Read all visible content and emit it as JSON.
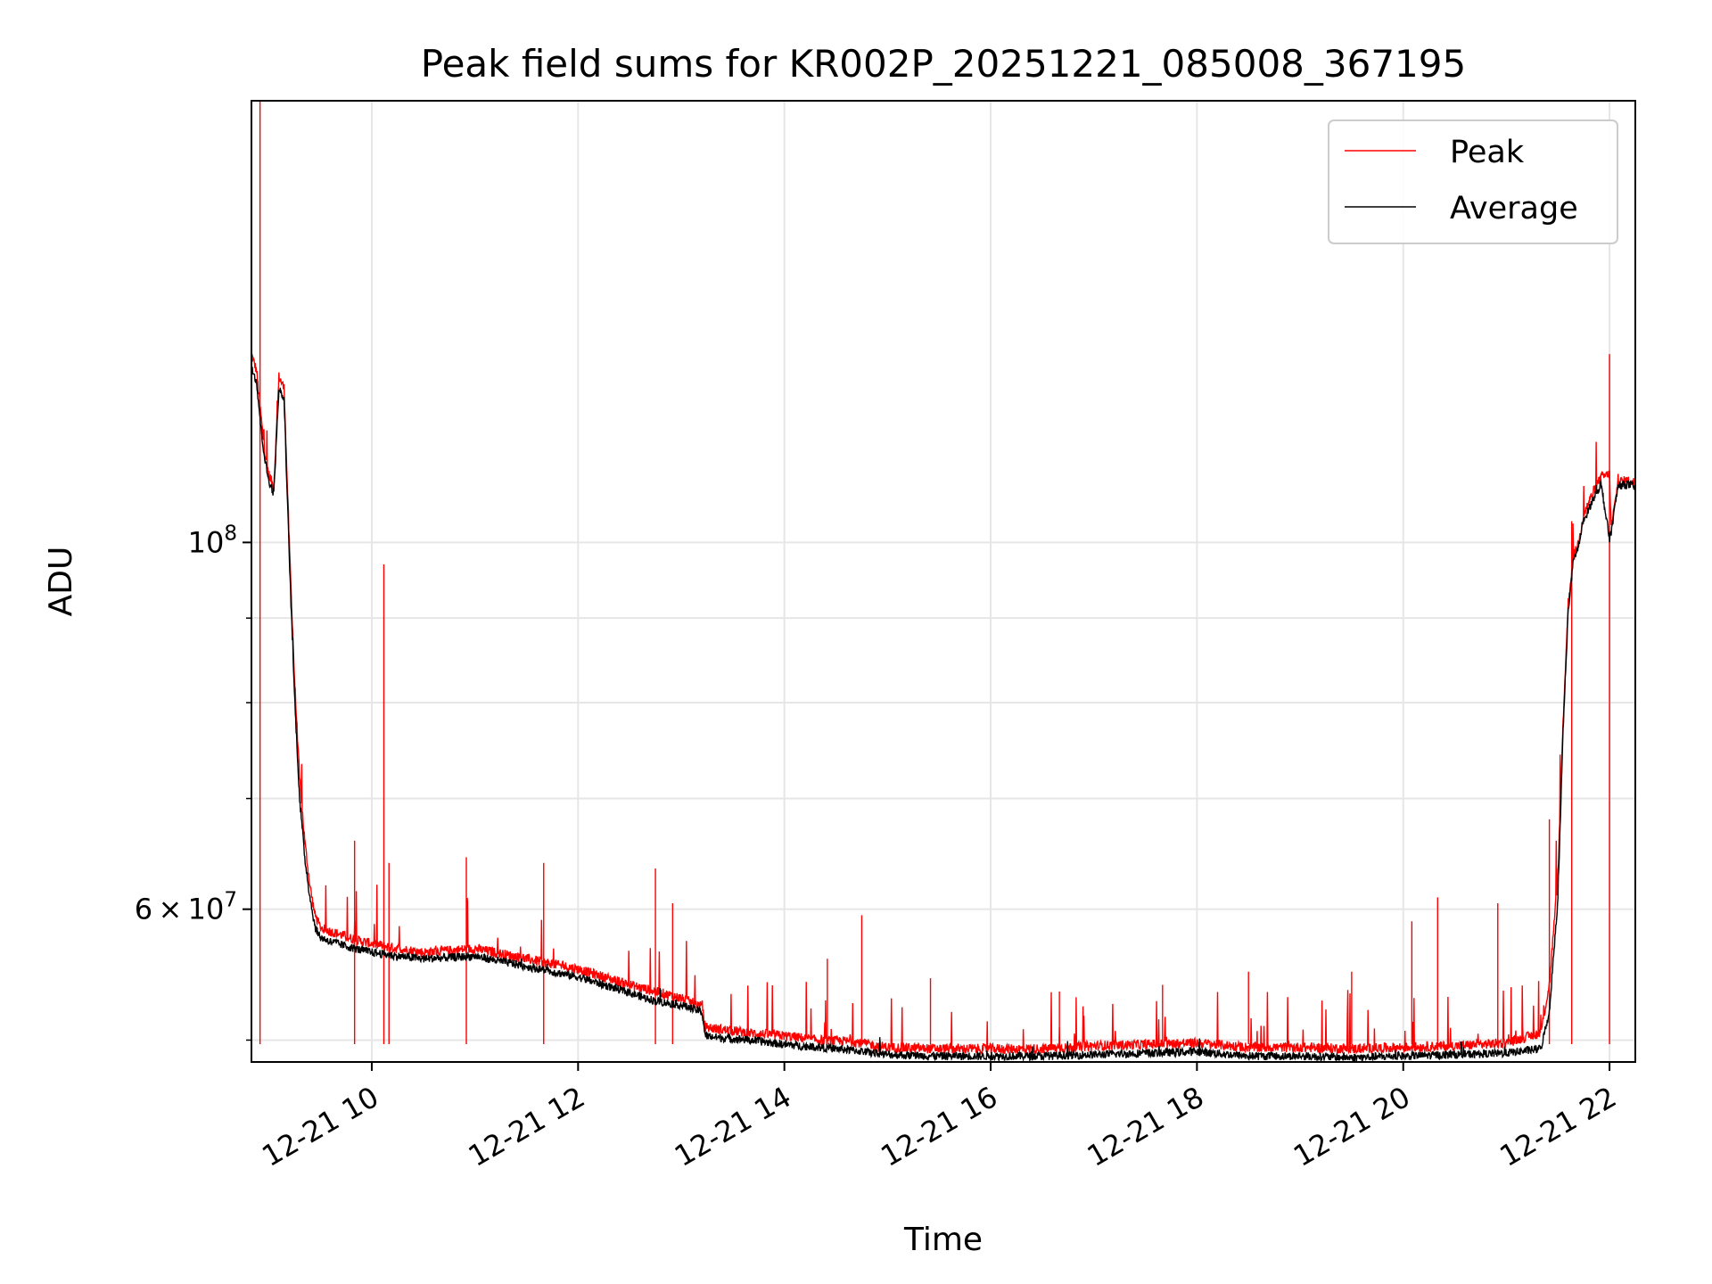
{
  "chart_data": {
    "type": "line",
    "title": "Peak field sums for KR002P_20251221_085008_367195",
    "xlabel": "Time",
    "ylabel": "ADU",
    "yscale": "log",
    "grid": true,
    "legend_position": "upper right",
    "xlim": [
      "2025-12-21 08:50",
      "2025-12-21 22:15"
    ],
    "ylim": [
      48500000,
      185000000
    ],
    "x_tick_labels": [
      "12-21 10",
      "12-21 12",
      "12-21 14",
      "12-21 16",
      "12-21 18",
      "12-21 20",
      "12-21 22"
    ],
    "x_tick_values": [
      "2025-12-21 10:00",
      "2025-12-21 12:00",
      "2025-12-21 14:00",
      "2025-12-21 16:00",
      "2025-12-21 18:00",
      "2025-12-21 20:00",
      "2025-12-21 22:00"
    ],
    "y_tick_labels": [
      {
        "value": 100000000,
        "base": "10",
        "exp": "8"
      },
      {
        "value": 60000000,
        "mant": "6",
        "times": "×",
        "base": "10",
        "exp": "7"
      }
    ],
    "y_minor_ticks": [
      50000000,
      70000000,
      80000000,
      90000000
    ],
    "series": [
      {
        "name": "Peak",
        "color": "#ff0000",
        "x": [
          "2025-12-21 08:50",
          "2025-12-21 08:53",
          "2025-12-21 08:56",
          "2025-12-21 08:58",
          "2025-12-21 09:00",
          "2025-12-21 09:03",
          "2025-12-21 09:06",
          "2025-12-21 09:09",
          "2025-12-21 09:12",
          "2025-12-21 09:15",
          "2025-12-21 09:18",
          "2025-12-21 09:21",
          "2025-12-21 09:24",
          "2025-12-21 09:27",
          "2025-12-21 09:30",
          "2025-12-21 09:35",
          "2025-12-21 09:40",
          "2025-12-21 09:50",
          "2025-12-21 10:00",
          "2025-12-21 10:15",
          "2025-12-21 10:30",
          "2025-12-21 11:00",
          "2025-12-21 11:30",
          "2025-12-21 12:00",
          "2025-12-21 12:30",
          "2025-12-21 12:45",
          "2025-12-21 13:00",
          "2025-12-21 13:12",
          "2025-12-21 13:14",
          "2025-12-21 13:20",
          "2025-12-21 13:40",
          "2025-12-21 14:00",
          "2025-12-21 14:20",
          "2025-12-21 14:40",
          "2025-12-21 15:00",
          "2025-12-21 15:30",
          "2025-12-21 16:00",
          "2025-12-21 16:30",
          "2025-12-21 17:00",
          "2025-12-21 17:30",
          "2025-12-21 18:00",
          "2025-12-21 18:30",
          "2025-12-21 19:00",
          "2025-12-21 19:30",
          "2025-12-21 20:00",
          "2025-12-21 20:30",
          "2025-12-21 21:00",
          "2025-12-21 21:20",
          "2025-12-21 21:25",
          "2025-12-21 21:30",
          "2025-12-21 21:33",
          "2025-12-21 21:36",
          "2025-12-21 21:39",
          "2025-12-21 21:42",
          "2025-12-21 21:45",
          "2025-12-21 21:50",
          "2025-12-21 21:55",
          "2025-12-21 22:00",
          "2025-12-21 22:01",
          "2025-12-21 22:05",
          "2025-12-21 22:10",
          "2025-12-21 22:15"
        ],
        "values": [
          130000000,
          127000000,
          118000000,
          113000000,
          110000000,
          108000000,
          126000000,
          124000000,
          100000000,
          83000000,
          72000000,
          66000000,
          62000000,
          59500000,
          58500000,
          58200000,
          58000000,
          57500000,
          57200000,
          56800000,
          56500000,
          56800000,
          56000000,
          55200000,
          54000000,
          53500000,
          53000000,
          52400000,
          50900000,
          50800000,
          50500000,
          50300000,
          50000000,
          49900000,
          49500000,
          49400000,
          49400000,
          49400000,
          49600000,
          49700000,
          49800000,
          49500000,
          49500000,
          49400000,
          49500000,
          49600000,
          49800000,
          50500000,
          54000000,
          63000000,
          78000000,
          92000000,
          98000000,
          100000000,
          104000000,
          107000000,
          109500000,
          110000000,
          102000000,
          108800000,
          109000000,
          108700000
        ]
      },
      {
        "name": "Average",
        "color": "#000000",
        "x": [
          "2025-12-21 08:50",
          "2025-12-21 08:53",
          "2025-12-21 08:56",
          "2025-12-21 08:58",
          "2025-12-21 09:00",
          "2025-12-21 09:03",
          "2025-12-21 09:06",
          "2025-12-21 09:09",
          "2025-12-21 09:12",
          "2025-12-21 09:15",
          "2025-12-21 09:18",
          "2025-12-21 09:21",
          "2025-12-21 09:24",
          "2025-12-21 09:27",
          "2025-12-21 09:30",
          "2025-12-21 09:35",
          "2025-12-21 09:40",
          "2025-12-21 09:50",
          "2025-12-21 10:00",
          "2025-12-21 10:15",
          "2025-12-21 10:30",
          "2025-12-21 11:00",
          "2025-12-21 11:30",
          "2025-12-21 12:00",
          "2025-12-21 12:30",
          "2025-12-21 12:45",
          "2025-12-21 13:00",
          "2025-12-21 13:12",
          "2025-12-21 13:14",
          "2025-12-21 13:20",
          "2025-12-21 13:40",
          "2025-12-21 14:00",
          "2025-12-21 14:20",
          "2025-12-21 14:40",
          "2025-12-21 15:00",
          "2025-12-21 15:30",
          "2025-12-21 16:00",
          "2025-12-21 16:30",
          "2025-12-21 17:00",
          "2025-12-21 17:30",
          "2025-12-21 18:00",
          "2025-12-21 18:30",
          "2025-12-21 19:00",
          "2025-12-21 19:30",
          "2025-12-21 20:00",
          "2025-12-21 20:30",
          "2025-12-21 21:00",
          "2025-12-21 21:20",
          "2025-12-21 21:25",
          "2025-12-21 21:30",
          "2025-12-21 21:33",
          "2025-12-21 21:36",
          "2025-12-21 21:39",
          "2025-12-21 21:42",
          "2025-12-21 21:45",
          "2025-12-21 21:50",
          "2025-12-21 21:55",
          "2025-12-21 22:00",
          "2025-12-21 22:01",
          "2025-12-21 22:05",
          "2025-12-21 22:10",
          "2025-12-21 22:15"
        ],
        "values": [
          128000000,
          125000000,
          116000000,
          112000000,
          109000000,
          107000000,
          124000000,
          122000000,
          98000000,
          81000000,
          70000000,
          64500000,
          61000000,
          58500000,
          57700000,
          57400000,
          57200000,
          56800000,
          56500000,
          56200000,
          56000000,
          56200000,
          55400000,
          54600000,
          53400000,
          52800000,
          52500000,
          52000000,
          50300000,
          50200000,
          50000000,
          49700000,
          49500000,
          49300000,
          49000000,
          48900000,
          48900000,
          48900000,
          49000000,
          49100000,
          49200000,
          48900000,
          48900000,
          48800000,
          48900000,
          49000000,
          49100000,
          49400000,
          52000000,
          61000000,
          77000000,
          91000000,
          97500000,
          99500000,
          103000000,
          106000000,
          108500000,
          100500000,
          101500000,
          108200000,
          108400000,
          108100000
        ]
      }
    ],
    "spikes": [
      {
        "x": "2025-12-21 08:55",
        "value": 185000000
      },
      {
        "x": "2025-12-21 09:50",
        "value": 66000000
      },
      {
        "x": "2025-12-21 10:07",
        "value": 97000000
      },
      {
        "x": "2025-12-21 10:10",
        "value": 64000000
      },
      {
        "x": "2025-12-21 10:55",
        "value": 64500000
      },
      {
        "x": "2025-12-21 11:40",
        "value": 64000000
      },
      {
        "x": "2025-12-21 12:45",
        "value": 63500000
      },
      {
        "x": "2025-12-21 12:55",
        "value": 60500000
      },
      {
        "x": "2025-12-21 14:25",
        "value": 56000000
      },
      {
        "x": "2025-12-21 14:45",
        "value": 59500000
      },
      {
        "x": "2025-12-21 15:25",
        "value": 54500000
      },
      {
        "x": "2025-12-21 16:40",
        "value": 53500000
      },
      {
        "x": "2025-12-21 17:40",
        "value": 54000000
      },
      {
        "x": "2025-12-21 18:30",
        "value": 55000000
      },
      {
        "x": "2025-12-21 19:30",
        "value": 55000000
      },
      {
        "x": "2025-12-21 20:05",
        "value": 59000000
      },
      {
        "x": "2025-12-21 20:20",
        "value": 61000000
      },
      {
        "x": "2025-12-21 20:55",
        "value": 60500000
      },
      {
        "x": "2025-12-21 21:25",
        "value": 68000000
      },
      {
        "x": "2025-12-21 21:38",
        "value": 103000000
      },
      {
        "x": "2025-12-21 22:00",
        "value": 130000000
      }
    ]
  }
}
